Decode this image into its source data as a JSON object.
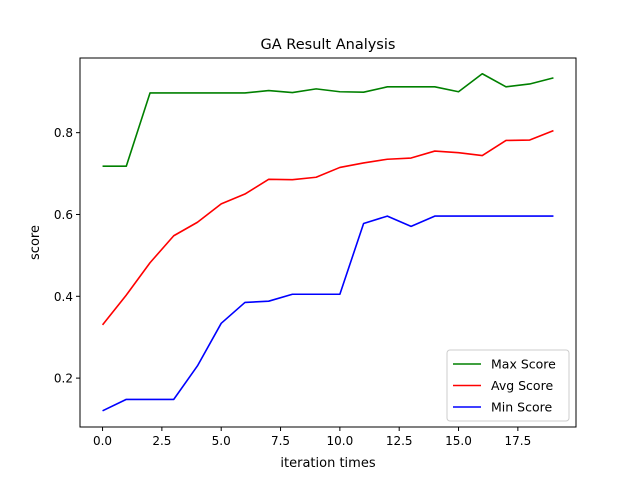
{
  "chart_data": {
    "type": "line",
    "title": "GA Result Analysis",
    "xlabel": "iteration times",
    "ylabel": "score",
    "xlim": [
      -0.95,
      19.95
    ],
    "ylim": [
      0.0805,
      0.9825
    ],
    "x_ticks": [
      0,
      2.5,
      5,
      7.5,
      10,
      12.5,
      15,
      17.5
    ],
    "x_tick_labels": [
      "0.0",
      "2.5",
      "5.0",
      "7.5",
      "10.0",
      "12.5",
      "15.0",
      "17.5"
    ],
    "y_ticks": [
      0.2,
      0.4,
      0.6,
      0.8
    ],
    "y_tick_labels": [
      "0.2",
      "0.4",
      "0.6",
      "0.8"
    ],
    "grid": false,
    "legend_position": "lower-right",
    "x": [
      0,
      1,
      2,
      3,
      4,
      5,
      6,
      7,
      8,
      9,
      10,
      11,
      12,
      13,
      14,
      15,
      16,
      17,
      18,
      19
    ],
    "series": [
      {
        "name": "Max Score",
        "color": "#008000",
        "values": [
          0.718,
          0.718,
          0.897,
          0.897,
          0.897,
          0.897,
          0.897,
          0.903,
          0.898,
          0.907,
          0.9,
          0.899,
          0.912,
          0.912,
          0.912,
          0.9,
          0.944,
          0.912,
          0.919,
          0.934
        ]
      },
      {
        "name": "Avg Score",
        "color": "#ff0000",
        "values": [
          0.33,
          0.403,
          0.482,
          0.548,
          0.581,
          0.626,
          0.65,
          0.686,
          0.685,
          0.691,
          0.715,
          0.726,
          0.735,
          0.738,
          0.755,
          0.751,
          0.744,
          0.781,
          0.782,
          0.805
        ]
      },
      {
        "name": "Min Score",
        "color": "#0000ff",
        "values": [
          0.12,
          0.148,
          0.148,
          0.148,
          0.23,
          0.334,
          0.385,
          0.388,
          0.405,
          0.405,
          0.405,
          0.578,
          0.596,
          0.571,
          0.596,
          0.596,
          0.596,
          0.596,
          0.596,
          0.596
        ]
      }
    ]
  }
}
